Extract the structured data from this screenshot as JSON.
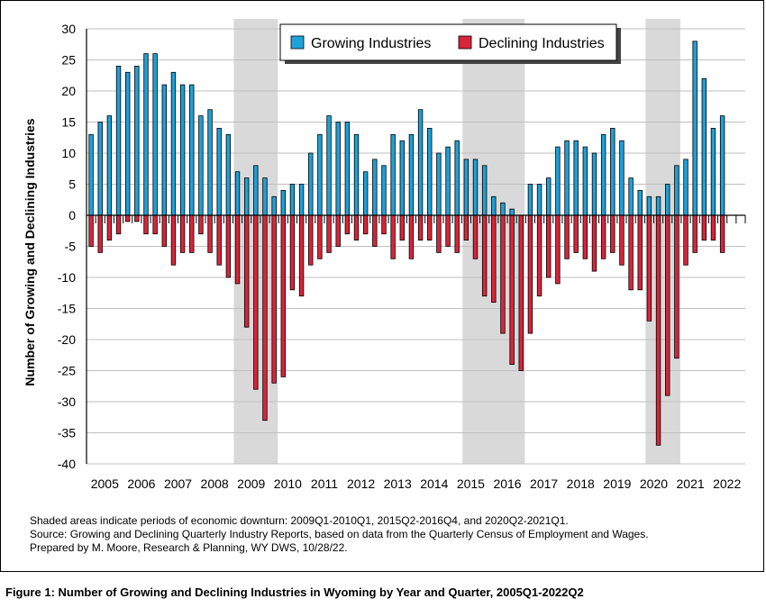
{
  "chart_data": {
    "type": "bar",
    "title": "",
    "xlabel": "",
    "ylabel": "Number of Growing and Declining Industries",
    "ylim": [
      -40,
      30
    ],
    "yticks": [
      30,
      25,
      20,
      15,
      10,
      5,
      0,
      -5,
      -10,
      -15,
      -20,
      -25,
      -30,
      -35,
      -40
    ],
    "year_labels": [
      "2005",
      "2006",
      "2007",
      "2008",
      "2009",
      "2010",
      "2011",
      "2012",
      "2013",
      "2014",
      "2015",
      "2016",
      "2017",
      "2018",
      "2019",
      "2020",
      "2021",
      "2022"
    ],
    "quarters_per_year": 4,
    "legend": {
      "position": "top-center"
    },
    "series": [
      {
        "name": "Growing Industries",
        "color": "#1fa0d8",
        "values": [
          13,
          15,
          16,
          24,
          23,
          24,
          26,
          26,
          21,
          23,
          21,
          21,
          16,
          17,
          14,
          13,
          7,
          6,
          8,
          6,
          3,
          4,
          5,
          5,
          10,
          13,
          16,
          15,
          15,
          13,
          7,
          9,
          8,
          13,
          12,
          13,
          17,
          14,
          10,
          11,
          12,
          9,
          9,
          8,
          3,
          2,
          1,
          0,
          5,
          5,
          6,
          11,
          12,
          12,
          11,
          10,
          13,
          14,
          12,
          6,
          4,
          3,
          3,
          5,
          8,
          9,
          28,
          22,
          14,
          16
        ]
      },
      {
        "name": "Declining Industries",
        "color": "#d8253a",
        "values": [
          -5,
          -6,
          -4,
          -3,
          -1,
          -1,
          -3,
          -3,
          -5,
          -8,
          -6,
          -6,
          -3,
          -6,
          -8,
          -10,
          -11,
          -18,
          -28,
          -33,
          -27,
          -26,
          -12,
          -13,
          -8,
          -7,
          -6,
          -5,
          -3,
          -4,
          -3,
          -5,
          -3,
          -7,
          -4,
          -7,
          -4,
          -4,
          -6,
          -5,
          -6,
          -4,
          -7,
          -13,
          -14,
          -19,
          -24,
          -25,
          -19,
          -13,
          -10,
          -11,
          -7,
          -6,
          -7,
          -9,
          -7,
          -6,
          -8,
          -12,
          -12,
          -17,
          -37,
          -29,
          -23,
          -8,
          -6,
          -4,
          -4,
          -6
        ]
      }
    ],
    "shaded_periods": [
      [
        "2009Q1",
        "2010Q1"
      ],
      [
        "2015Q2",
        "2016Q4"
      ],
      [
        "2020Q2",
        "2021Q1"
      ]
    ]
  },
  "notes": [
    "Shaded areas indicate periods of economic downturn: 2009Q1-2010Q1, 2015Q2-2016Q4, and 2020Q2-2021Q1.",
    "Source: Growing and Declining Quarterly Industry Reports, based on data from the Quarterly Census of Employment and Wages.",
    "Prepared by M. Moore, Research & Planning, WY DWS, 10/28/22."
  ],
  "caption": "Figure 1: Number of Growing and Declining Industries in Wyoming by Year and Quarter, 2005Q1-2022Q2",
  "colors": {
    "shade": "#d9d9d9",
    "grid": "#bfbfbf"
  }
}
